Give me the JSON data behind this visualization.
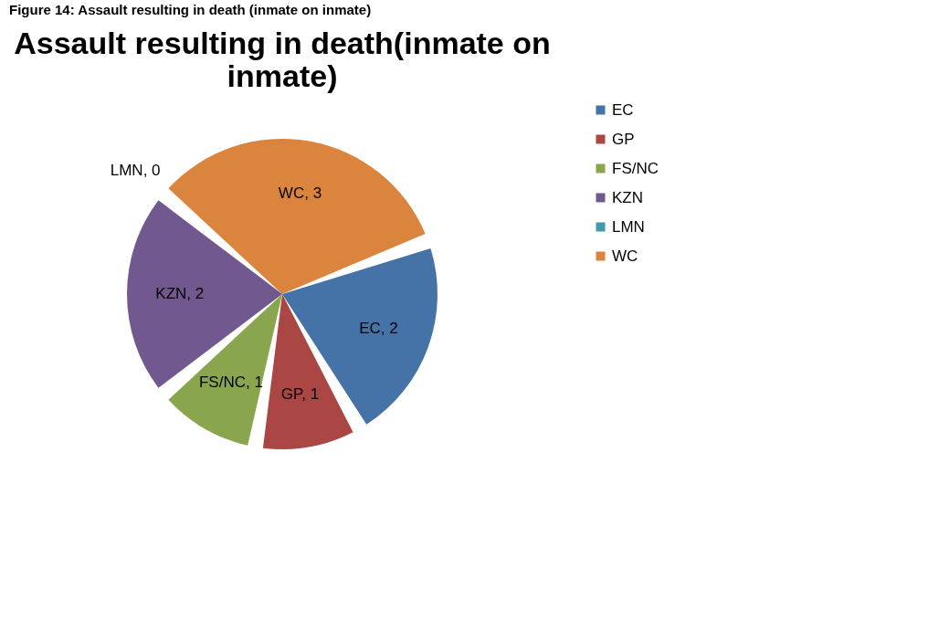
{
  "chart_data": {
    "type": "pie",
    "title": "Assault resulting in death(inmate on inmate)",
    "categories": [
      "EC",
      "GP",
      "FS/NC",
      "KZN",
      "LMN",
      "WC"
    ],
    "values": [
      2,
      1,
      1,
      2,
      0,
      3
    ],
    "value_labels": [
      "EC, 2",
      "GP, 1",
      "FS/NC, 1",
      "KZN, 2",
      "LMN, 0",
      "WC, 3"
    ],
    "colors": [
      "#4572a7",
      "#aa4643",
      "#89a54e",
      "#71588f",
      "#4198af",
      "#db843d"
    ],
    "legend": "right",
    "annotations": [
      "Figure 14: Assault resulting in death (inmate on inmate)"
    ]
  }
}
